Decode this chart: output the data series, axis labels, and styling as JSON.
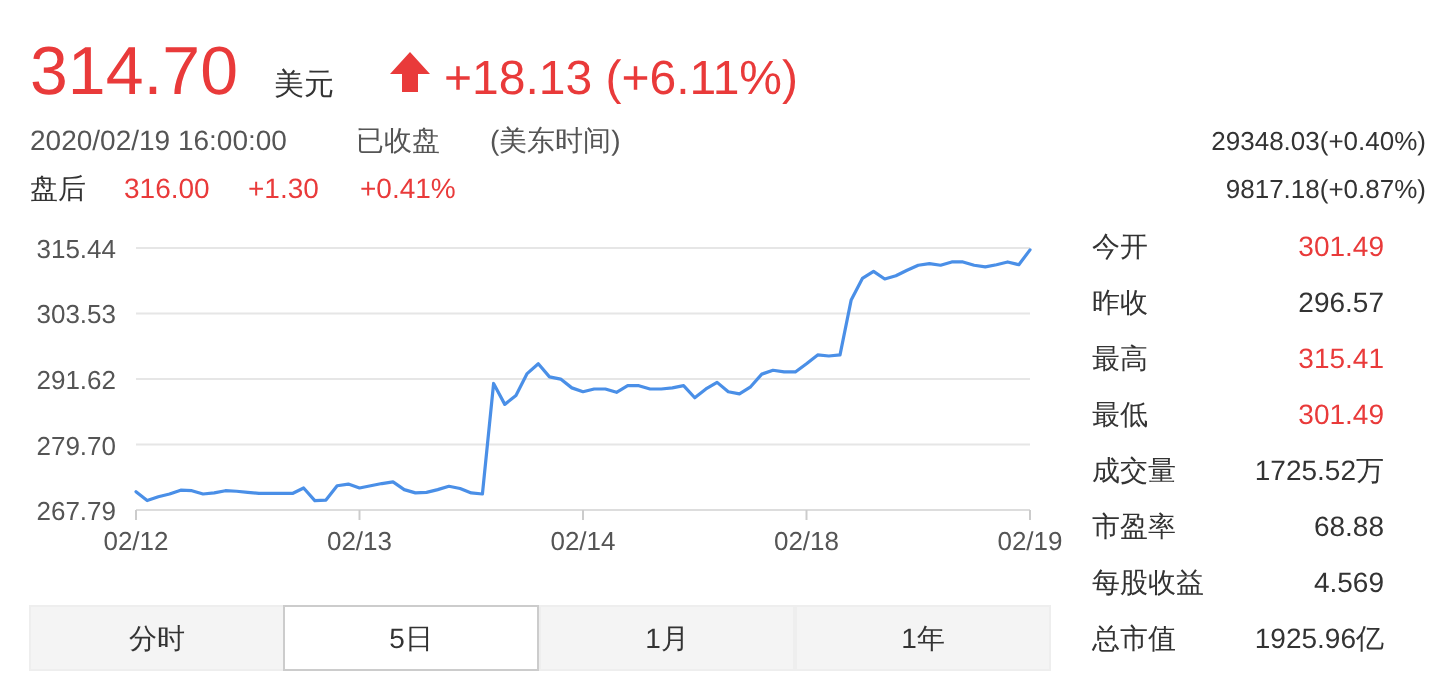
{
  "chart_data": {
    "type": "line",
    "categories": [
      "02/12",
      null,
      null,
      null,
      null,
      null,
      null,
      null,
      null,
      null,
      null,
      null,
      null,
      null,
      null,
      null,
      null,
      null,
      null,
      null,
      "02/13",
      null,
      null,
      null,
      null,
      null,
      null,
      null,
      null,
      null,
      null,
      null,
      null,
      null,
      null,
      null,
      null,
      null,
      null,
      null,
      "02/14",
      null,
      null,
      null,
      null,
      null,
      null,
      null,
      null,
      null,
      null,
      null,
      null,
      null,
      null,
      null,
      null,
      null,
      null,
      null,
      "02/18",
      null,
      null,
      null,
      null,
      null,
      null,
      null,
      null,
      null,
      null,
      null,
      null,
      null,
      null,
      null,
      null,
      null,
      null,
      null,
      "02/19"
    ],
    "series": [
      {
        "color": "#4a8fe7",
        "values": [
          271.1,
          269.5,
          270.2,
          270.7,
          271.4,
          271.3,
          270.7,
          270.9,
          271.3,
          271.2,
          271.0,
          270.8,
          270.8,
          270.8,
          270.8,
          271.8,
          269.5,
          269.6,
          272.2,
          272.5,
          271.8,
          272.2,
          272.6,
          272.9,
          271.5,
          270.9,
          271.0,
          271.5,
          272.1,
          271.7,
          270.9,
          270.7,
          290.8,
          287.0,
          288.6,
          292.6,
          294.4,
          292.0,
          291.6,
          290.0,
          289.3,
          289.8,
          289.8,
          289.2,
          290.4,
          290.4,
          289.8,
          289.8,
          290.0,
          290.4,
          288.2,
          289.8,
          291.0,
          289.3,
          288.9,
          290.2,
          292.5,
          293.2,
          292.9,
          292.9,
          294.4,
          296.0,
          295.8,
          296.0,
          306.0,
          309.9,
          311.2,
          309.8,
          310.4,
          311.4,
          312.3,
          312.6,
          312.3,
          312.9,
          312.9,
          312.3,
          312.0,
          312.4,
          312.9,
          312.4,
          315.1
        ]
      }
    ],
    "ylim": [
      267.79,
      315.44
    ],
    "yticks": [
      267.79,
      {
        "value": 279.7,
        "label": "279.70"
      },
      291.62,
      303.53,
      315.44
    ],
    "grid": "y",
    "annotations": [
      "314.70",
      "美元",
      "+18.13 (+6.11%)",
      "2020/02/19 16:00:00",
      "已收盘",
      "(美东时间)",
      "盘后",
      "316.00",
      "+1.30",
      "+0.41%",
      "29348.03(+0.40%)",
      "9817.18(+0.87%)",
      "今开",
      "301.49",
      "昨收",
      "296.57",
      "最高",
      "315.41",
      "最低",
      "301.49",
      "成交量",
      "1725.52万",
      "市盈率",
      "68.88",
      "每股收益",
      "4.569",
      "总市值",
      "1925.96亿",
      "分时",
      "5日",
      "1月",
      "1年"
    ]
  }
}
